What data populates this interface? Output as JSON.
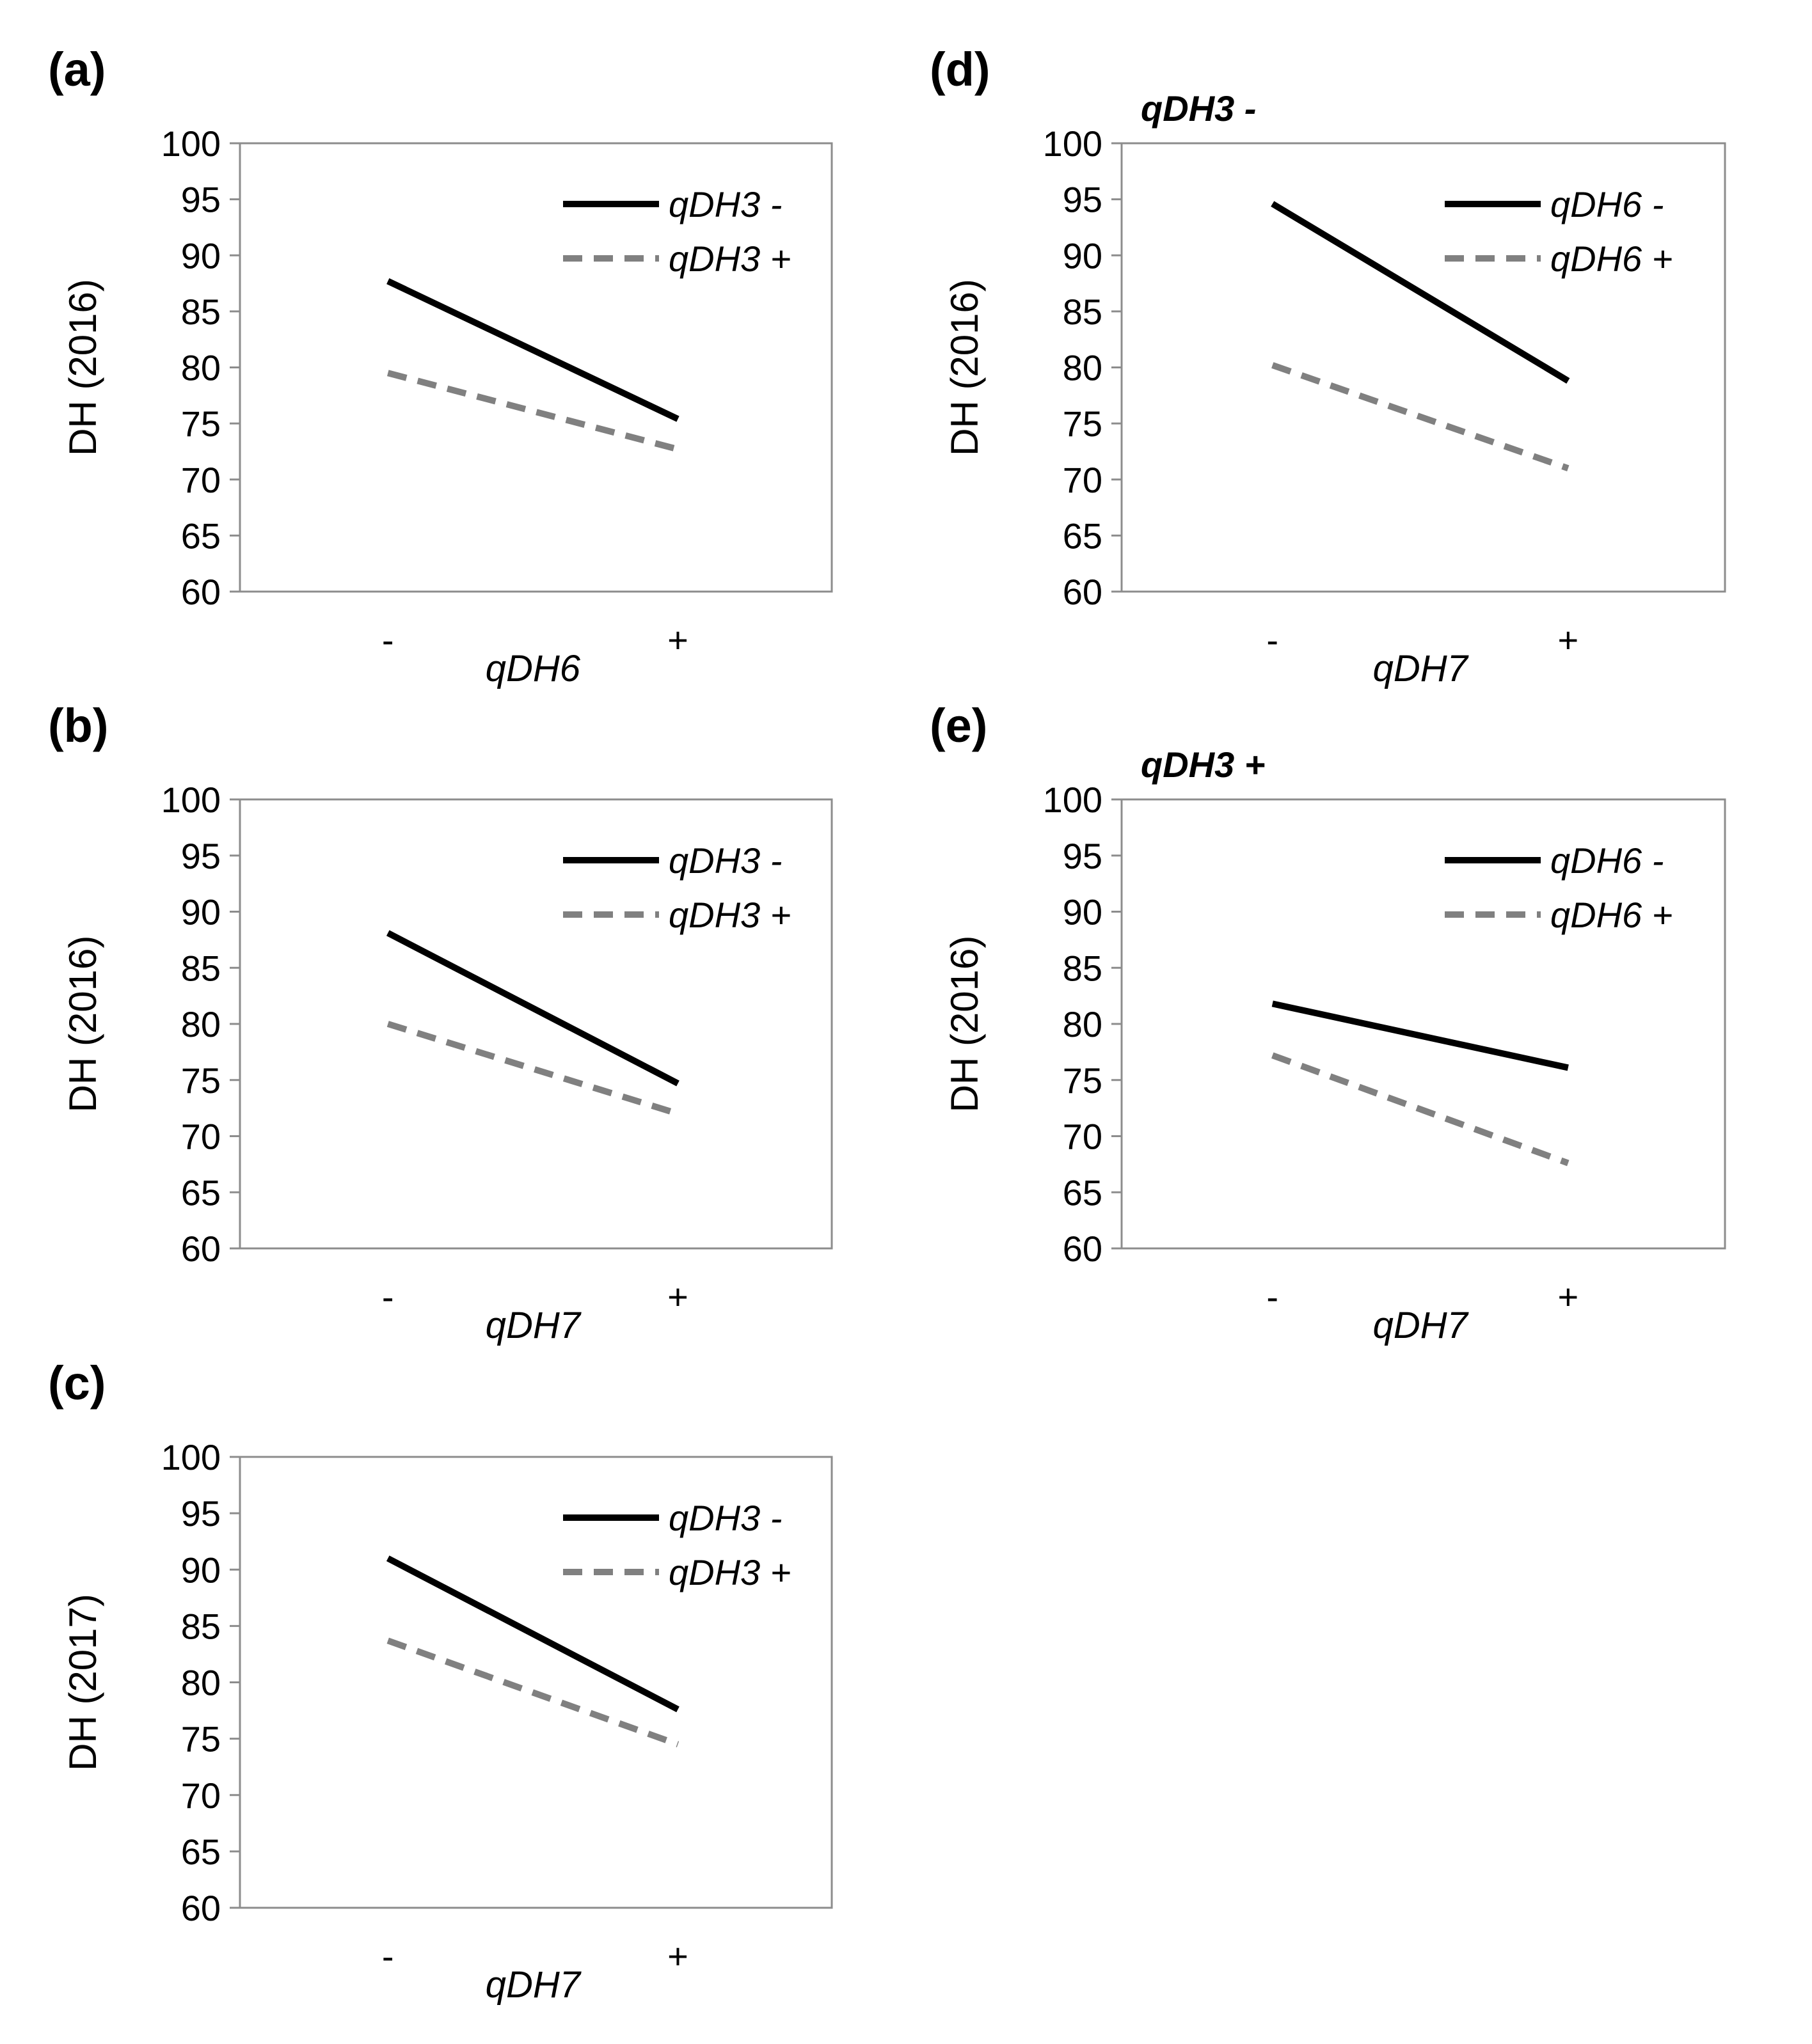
{
  "chart_data": [
    {
      "panel": "(a)",
      "subtitle": "",
      "type": "line",
      "ylabel": "DH (2016)",
      "xlabel": "qDH6",
      "categories": [
        "-",
        "+"
      ],
      "ylim": [
        60,
        100
      ],
      "yticks": [
        60,
        65,
        70,
        75,
        80,
        85,
        90,
        95,
        100
      ],
      "series": [
        {
          "name": "qDH3 -",
          "values": [
            87.7,
            75.4
          ],
          "color": "#000000",
          "style": "solid"
        },
        {
          "name": "qDH3 +",
          "values": [
            79.5,
            72.7
          ],
          "color": "#808080",
          "style": "dashed"
        }
      ]
    },
    {
      "panel": "(b)",
      "subtitle": "",
      "type": "line",
      "ylabel": "DH (2016)",
      "xlabel": "qDH7",
      "categories": [
        "-",
        "+"
      ],
      "ylim": [
        60,
        100
      ],
      "yticks": [
        60,
        65,
        70,
        75,
        80,
        85,
        90,
        95,
        100
      ],
      "series": [
        {
          "name": "qDH3 -",
          "values": [
            88.1,
            74.7
          ],
          "color": "#000000",
          "style": "solid"
        },
        {
          "name": "qDH3 +",
          "values": [
            80.0,
            72.0
          ],
          "color": "#808080",
          "style": "dashed"
        }
      ]
    },
    {
      "panel": "(c)",
      "subtitle": "",
      "type": "line",
      "ylabel": "DH (2017)",
      "xlabel": "qDH7",
      "categories": [
        "-",
        "+"
      ],
      "ylim": [
        60,
        100
      ],
      "yticks": [
        60,
        65,
        70,
        75,
        80,
        85,
        90,
        95,
        100
      ],
      "series": [
        {
          "name": "qDH3 -",
          "values": [
            91.0,
            77.6
          ],
          "color": "#000000",
          "style": "solid"
        },
        {
          "name": "qDH3 +",
          "values": [
            83.7,
            74.5
          ],
          "color": "#808080",
          "style": "dashed"
        }
      ]
    },
    {
      "panel": "(d)",
      "subtitle": "qDH3 -",
      "type": "line",
      "ylabel": "DH (2016)",
      "xlabel": "qDH7",
      "categories": [
        "-",
        "+"
      ],
      "ylim": [
        60,
        100
      ],
      "yticks": [
        60,
        65,
        70,
        75,
        80,
        85,
        90,
        95,
        100
      ],
      "series": [
        {
          "name": "qDH6 -",
          "values": [
            94.6,
            78.8
          ],
          "color": "#000000",
          "style": "solid"
        },
        {
          "name": "qDH6 +",
          "values": [
            80.2,
            71.0
          ],
          "color": "#808080",
          "style": "dashed"
        }
      ]
    },
    {
      "panel": "(e)",
      "subtitle": "qDH3 +",
      "type": "line",
      "ylabel": "DH (2016)",
      "xlabel": "qDH7",
      "categories": [
        "-",
        "+"
      ],
      "ylim": [
        60,
        100
      ],
      "yticks": [
        60,
        65,
        70,
        75,
        80,
        85,
        90,
        95,
        100
      ],
      "series": [
        {
          "name": "qDH6 -",
          "values": [
            81.8,
            76.1
          ],
          "color": "#000000",
          "style": "solid"
        },
        {
          "name": "qDH6 +",
          "values": [
            77.2,
            67.6
          ],
          "color": "#808080",
          "style": "dashed"
        }
      ]
    }
  ]
}
